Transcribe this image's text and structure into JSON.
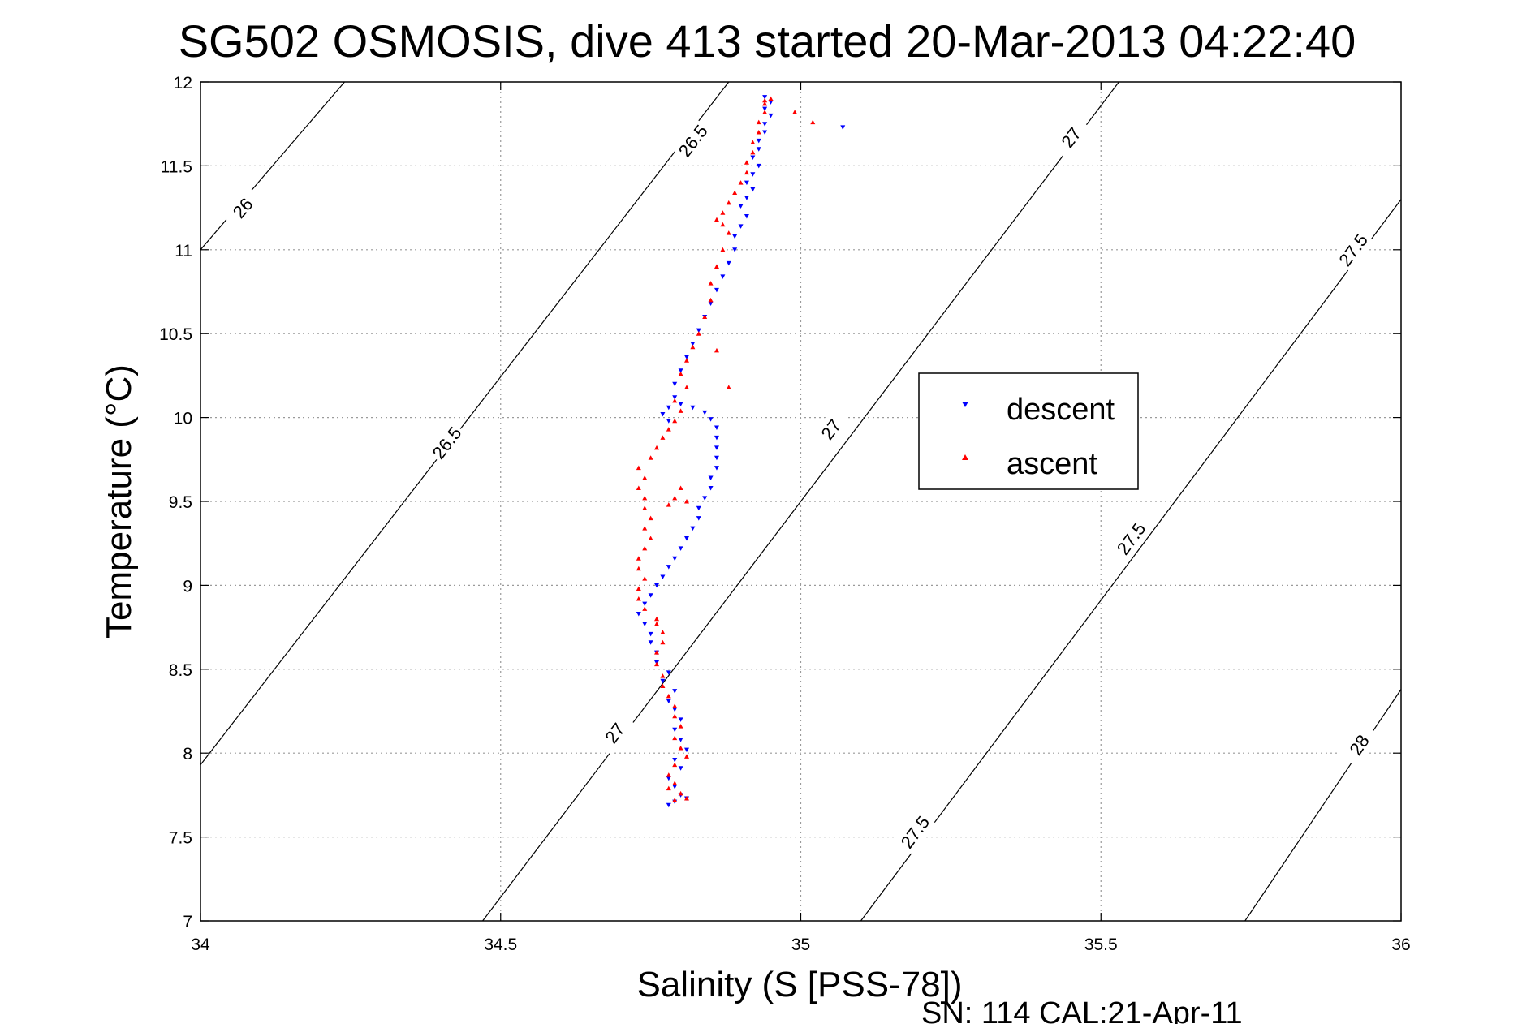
{
  "chart_data": {
    "type": "scatter",
    "title": "SG502 OSMOSIS, dive 413 started 20-Mar-2013 04:22:40",
    "xlabel": "Salinity (S [PSS-78])",
    "ylabel": "Temperature (°C)",
    "footer": "SN: 114  CAL:21-Apr-11",
    "xlim": [
      34,
      36
    ],
    "ylim": [
      7,
      12
    ],
    "xticks": [
      "34",
      "34.5",
      "35",
      "35.5",
      "36"
    ],
    "yticks": [
      "7",
      "7.5",
      "8",
      "8.5",
      "9",
      "9.5",
      "10",
      "10.5",
      "11",
      "11.5",
      "12"
    ],
    "grid": true,
    "legend_position": "right-middle",
    "density_contours": [
      {
        "level": "26",
        "lines": [
          [
            [
              34.0,
              11.0
            ],
            [
              34.24,
              12.0
            ]
          ]
        ],
        "labels": [
          {
            "text": "26",
            "s": 34.07,
            "t": 11.25
          }
        ]
      },
      {
        "level": "26.5",
        "lines": [
          [
            [
              34.0,
              7.93
            ],
            [
              34.88,
              12.0
            ]
          ]
        ],
        "labels": [
          {
            "text": "26.5",
            "s": 34.41,
            "t": 9.85
          },
          {
            "text": "26.5",
            "s": 34.82,
            "t": 11.65
          }
        ]
      },
      {
        "level": "27",
        "lines": [
          [
            [
              34.47,
              7.0
            ],
            [
              35.53,
              12.0
            ]
          ]
        ],
        "labels": [
          {
            "text": "27",
            "s": 34.69,
            "t": 8.12
          },
          {
            "text": "27",
            "s": 35.05,
            "t": 9.93
          },
          {
            "text": "27",
            "s": 35.45,
            "t": 11.67
          }
        ]
      },
      {
        "level": "27.5",
        "lines": [
          [
            [
              35.1,
              7.0
            ],
            [
              36.0,
              11.3
            ]
          ]
        ],
        "labels": [
          {
            "text": "27.5",
            "s": 35.19,
            "t": 7.53
          },
          {
            "text": "27.5",
            "s": 35.55,
            "t": 9.28
          },
          {
            "text": "27.5",
            "s": 35.92,
            "t": 11.0
          }
        ]
      },
      {
        "level": "28",
        "lines": [
          [
            [
              35.74,
              7.0
            ],
            [
              36.0,
              8.38
            ]
          ]
        ],
        "labels": [
          {
            "text": "28",
            "s": 35.93,
            "t": 8.05
          }
        ]
      }
    ],
    "series": [
      {
        "name": "descent",
        "color": "#0000ff",
        "marker": "triangle-down",
        "points": [
          [
            34.81,
            7.73
          ],
          [
            34.79,
            7.71
          ],
          [
            34.78,
            7.69
          ],
          [
            34.8,
            7.75
          ],
          [
            34.79,
            7.8
          ],
          [
            34.78,
            7.85
          ],
          [
            34.8,
            7.91
          ],
          [
            34.79,
            7.96
          ],
          [
            34.81,
            8.02
          ],
          [
            34.8,
            8.08
          ],
          [
            34.79,
            8.14
          ],
          [
            34.8,
            8.2
          ],
          [
            34.79,
            8.26
          ],
          [
            34.78,
            8.31
          ],
          [
            34.79,
            8.37
          ],
          [
            34.77,
            8.43
          ],
          [
            34.78,
            8.48
          ],
          [
            34.76,
            8.54
          ],
          [
            34.76,
            8.6
          ],
          [
            34.75,
            8.66
          ],
          [
            34.75,
            8.71
          ],
          [
            34.74,
            8.77
          ],
          [
            34.73,
            8.83
          ],
          [
            34.74,
            8.89
          ],
          [
            34.75,
            8.94
          ],
          [
            34.76,
            9.0
          ],
          [
            34.77,
            9.05
          ],
          [
            34.78,
            9.11
          ],
          [
            34.79,
            9.16
          ],
          [
            34.8,
            9.22
          ],
          [
            34.81,
            9.28
          ],
          [
            34.82,
            9.34
          ],
          [
            34.83,
            9.4
          ],
          [
            34.83,
            9.46
          ],
          [
            34.84,
            9.52
          ],
          [
            34.85,
            9.58
          ],
          [
            34.85,
            9.64
          ],
          [
            34.86,
            9.7
          ],
          [
            34.86,
            9.76
          ],
          [
            34.86,
            9.82
          ],
          [
            34.86,
            9.88
          ],
          [
            34.86,
            9.94
          ],
          [
            34.85,
            9.99
          ],
          [
            34.84,
            10.03
          ],
          [
            34.82,
            10.06
          ],
          [
            34.8,
            10.08
          ],
          [
            34.78,
            10.06
          ],
          [
            34.77,
            10.02
          ],
          [
            34.78,
            9.98
          ],
          [
            34.79,
            10.12
          ],
          [
            34.79,
            10.2
          ],
          [
            34.8,
            10.28
          ],
          [
            34.81,
            10.36
          ],
          [
            34.82,
            10.44
          ],
          [
            34.83,
            10.52
          ],
          [
            34.84,
            10.6
          ],
          [
            34.85,
            10.68
          ],
          [
            34.86,
            10.76
          ],
          [
            34.87,
            10.84
          ],
          [
            34.88,
            10.92
          ],
          [
            34.89,
            11.0
          ],
          [
            34.89,
            11.08
          ],
          [
            34.9,
            11.14
          ],
          [
            34.91,
            11.2
          ],
          [
            34.9,
            11.26
          ],
          [
            34.91,
            11.31
          ],
          [
            34.92,
            11.36
          ],
          [
            34.91,
            11.4
          ],
          [
            34.92,
            11.45
          ],
          [
            34.93,
            11.5
          ],
          [
            34.92,
            11.55
          ],
          [
            34.93,
            11.6
          ],
          [
            34.93,
            11.65
          ],
          [
            34.94,
            11.7
          ],
          [
            34.94,
            11.75
          ],
          [
            34.95,
            11.8
          ],
          [
            34.94,
            11.84
          ],
          [
            34.95,
            11.88
          ],
          [
            34.94,
            11.91
          ],
          [
            35.07,
            11.73
          ]
        ]
      },
      {
        "name": "ascent",
        "color": "#ff0000",
        "marker": "triangle-up",
        "points": [
          [
            34.79,
            7.72
          ],
          [
            34.81,
            7.73
          ],
          [
            34.8,
            7.76
          ],
          [
            34.78,
            7.79
          ],
          [
            34.79,
            7.82
          ],
          [
            34.78,
            7.87
          ],
          [
            34.79,
            7.93
          ],
          [
            34.81,
            7.98
          ],
          [
            34.8,
            8.03
          ],
          [
            34.79,
            8.09
          ],
          [
            34.8,
            8.16
          ],
          [
            34.79,
            8.22
          ],
          [
            34.79,
            8.28
          ],
          [
            34.78,
            8.34
          ],
          [
            34.77,
            8.4
          ],
          [
            34.77,
            8.46
          ],
          [
            34.76,
            8.53
          ],
          [
            34.76,
            8.6
          ],
          [
            34.77,
            8.66
          ],
          [
            34.77,
            8.72
          ],
          [
            34.76,
            8.77
          ],
          [
            34.76,
            8.8
          ],
          [
            34.74,
            8.86
          ],
          [
            34.73,
            8.92
          ],
          [
            34.73,
            8.98
          ],
          [
            34.74,
            9.04
          ],
          [
            34.73,
            9.1
          ],
          [
            34.73,
            9.16
          ],
          [
            34.74,
            9.22
          ],
          [
            34.75,
            9.28
          ],
          [
            34.74,
            9.34
          ],
          [
            34.75,
            9.4
          ],
          [
            34.74,
            9.46
          ],
          [
            34.74,
            9.52
          ],
          [
            34.73,
            9.58
          ],
          [
            34.74,
            9.64
          ],
          [
            34.73,
            9.7
          ],
          [
            34.75,
            9.76
          ],
          [
            34.76,
            9.82
          ],
          [
            34.77,
            9.88
          ],
          [
            34.78,
            9.93
          ],
          [
            34.79,
            9.98
          ],
          [
            34.8,
            10.04
          ],
          [
            34.79,
            10.1
          ],
          [
            34.81,
            10.18
          ],
          [
            34.8,
            10.26
          ],
          [
            34.81,
            10.34
          ],
          [
            34.82,
            10.42
          ],
          [
            34.83,
            10.5
          ],
          [
            34.84,
            10.6
          ],
          [
            34.85,
            10.7
          ],
          [
            34.85,
            10.8
          ],
          [
            34.86,
            10.9
          ],
          [
            34.87,
            11.0
          ],
          [
            34.88,
            11.1
          ],
          [
            34.87,
            11.15
          ],
          [
            34.86,
            11.18
          ],
          [
            34.87,
            11.22
          ],
          [
            34.88,
            11.28
          ],
          [
            34.89,
            11.34
          ],
          [
            34.9,
            11.4
          ],
          [
            34.91,
            11.46
          ],
          [
            34.91,
            11.52
          ],
          [
            34.92,
            11.58
          ],
          [
            34.92,
            11.64
          ],
          [
            34.93,
            11.7
          ],
          [
            34.93,
            11.76
          ],
          [
            34.94,
            11.82
          ],
          [
            34.94,
            11.87
          ],
          [
            34.95,
            11.9
          ],
          [
            34.94,
            11.89
          ],
          [
            34.99,
            11.82
          ],
          [
            35.02,
            11.76
          ],
          [
            34.78,
            9.48
          ],
          [
            34.79,
            9.52
          ],
          [
            34.8,
            9.58
          ],
          [
            34.81,
            9.5
          ],
          [
            34.86,
            10.4
          ],
          [
            34.88,
            10.18
          ]
        ]
      }
    ]
  }
}
